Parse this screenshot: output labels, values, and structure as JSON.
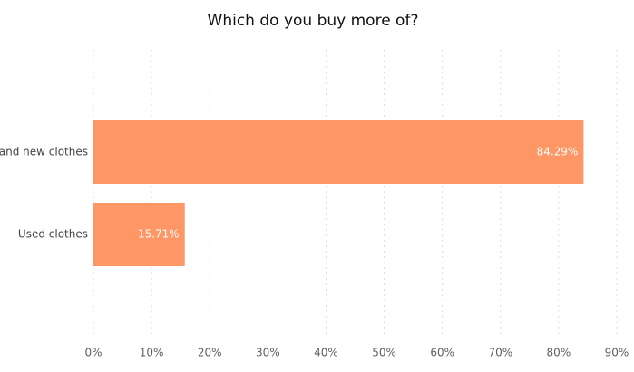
{
  "chart_data": {
    "type": "bar",
    "orientation": "horizontal",
    "title": "Which do you buy more of?",
    "categories": [
      "Brand new clothes",
      "Used clothes"
    ],
    "values": [
      84.29,
      15.71
    ],
    "value_labels": [
      "84.29%",
      "15.71%"
    ],
    "color": "#fe9666",
    "xlim": [
      0,
      90
    ],
    "xticks": [
      {
        "value": 0,
        "label": "0%"
      },
      {
        "value": 10,
        "label": "10%"
      },
      {
        "value": 20,
        "label": "20%"
      },
      {
        "value": 30,
        "label": "30%"
      },
      {
        "value": 40,
        "label": "40%"
      },
      {
        "value": 50,
        "label": "50%"
      },
      {
        "value": 60,
        "label": "60%"
      },
      {
        "value": 70,
        "label": "70%"
      },
      {
        "value": 80,
        "label": "80%"
      },
      {
        "value": 90,
        "label": "90%"
      }
    ],
    "grid": true
  }
}
